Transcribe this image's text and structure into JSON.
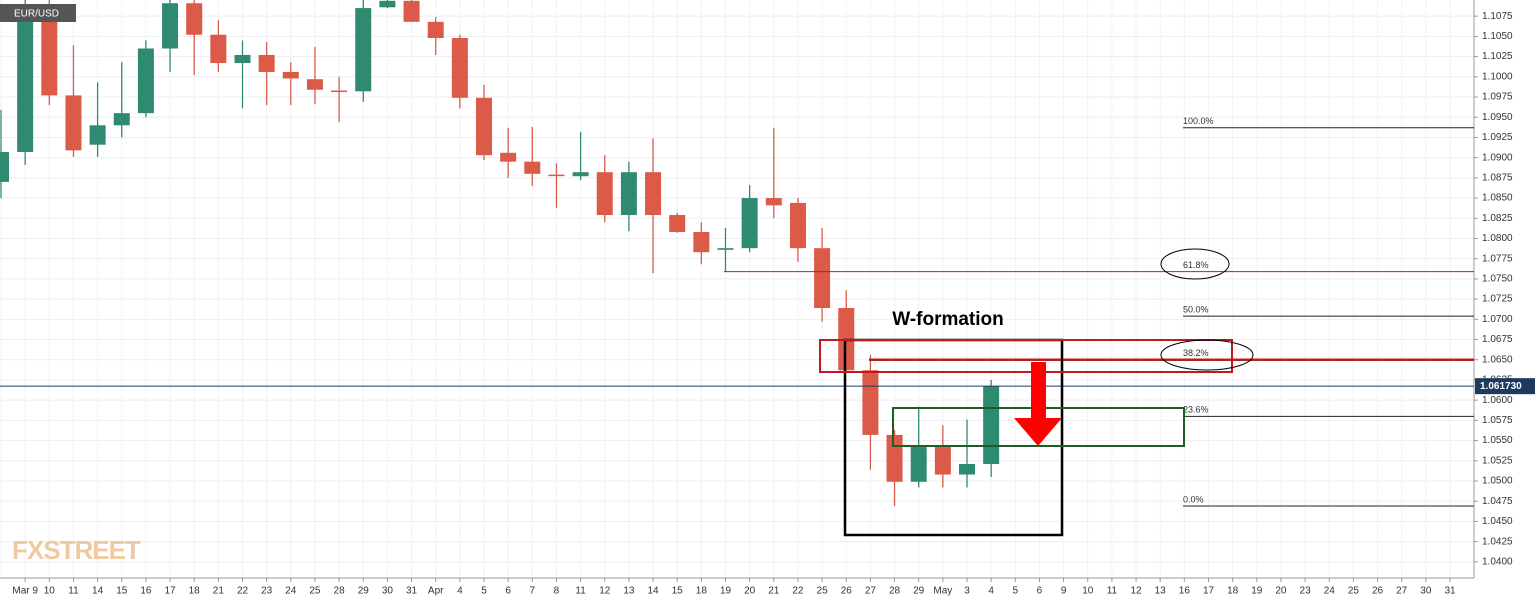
{
  "chart_data": {
    "type": "candlestick",
    "symbol": "EUR/USD",
    "categories": [
      null,
      "Mar 9",
      "10",
      "11",
      "14",
      "15",
      "16",
      "17",
      "18",
      "21",
      "22",
      "23",
      "24",
      "25",
      "28",
      "29",
      "30",
      "31",
      "Apr",
      "4",
      "5",
      "6",
      "7",
      "8",
      "11",
      "12",
      "13",
      "14",
      "15",
      "18",
      "19",
      "20",
      "21",
      "22",
      "25",
      "26",
      "27",
      "28",
      "29",
      "May",
      "3",
      "4",
      "5",
      "6",
      "9",
      "10",
      "11",
      "12",
      "13",
      "16",
      "17",
      "18",
      "19",
      "20",
      "23",
      "24",
      "25",
      "26",
      "27",
      "30",
      "31"
    ],
    "open": [
      1.087,
      1.0907,
      1.1082,
      1.0977,
      1.0916,
      1.094,
      1.0955,
      1.1035,
      1.1091,
      1.1052,
      1.1017,
      1.1027,
      1.1006,
      1.0997,
      1.0983,
      1.0982,
      1.1086,
      1.1094,
      1.1068,
      1.1048,
      1.0974,
      1.0906,
      1.0895,
      1.0879,
      1.0877,
      1.0882,
      1.0829,
      1.0882,
      1.0829,
      1.0808,
      1.0786,
      1.0788,
      1.085,
      1.0844,
      1.0788,
      1.0714,
      1.0637,
      1.0557,
      1.0499,
      1.0542,
      1.0508,
      1.0521,
      null,
      null,
      null,
      null,
      null,
      null,
      null,
      null,
      null,
      null,
      null,
      null,
      null,
      null,
      null,
      null,
      null,
      null,
      null
    ],
    "high": [
      1.0959,
      1.1095,
      1.1095,
      1.1039,
      1.0993,
      1.1018,
      1.1045,
      1.1095,
      1.1095,
      1.107,
      1.1045,
      1.1043,
      1.1018,
      1.1037,
      1.1,
      1.1095,
      1.1095,
      1.1095,
      1.1074,
      1.1052,
      1.099,
      1.0937,
      1.0938,
      1.0893,
      1.0932,
      1.0903,
      1.0895,
      1.0924,
      1.0832,
      1.082,
      1.0813,
      1.0866,
      1.0937,
      1.085,
      1.0813,
      1.0736,
      1.0656,
      1.0563,
      1.0592,
      1.0569,
      1.0576,
      1.0625,
      null,
      null,
      null,
      null,
      null,
      null,
      null,
      null,
      null,
      null,
      null,
      null,
      null,
      null,
      null,
      null,
      null,
      null,
      null
    ],
    "low": [
      1.085,
      1.0891,
      1.0965,
      1.0901,
      1.0901,
      1.0925,
      1.095,
      1.1006,
      1.1002,
      1.1006,
      1.0961,
      1.0965,
      1.0965,
      1.0966,
      1.0944,
      1.0969,
      1.1085,
      1.1068,
      1.1027,
      1.0961,
      1.0897,
      1.0875,
      1.0865,
      1.0838,
      1.0872,
      1.082,
      1.0809,
      1.0757,
      1.0807,
      1.0768,
      1.0759,
      1.0783,
      1.0825,
      1.0771,
      1.0697,
      1.0635,
      1.0514,
      1.0469,
      1.0492,
      1.0492,
      1.0492,
      1.0505,
      null,
      null,
      null,
      null,
      null,
      null,
      null,
      null,
      null,
      null,
      null,
      null,
      null,
      null,
      null,
      null,
      null,
      null,
      null
    ],
    "close": [
      1.0907,
      1.1082,
      1.0977,
      1.0909,
      1.094,
      1.0955,
      1.1035,
      1.1091,
      1.1052,
      1.1017,
      1.1027,
      1.1006,
      1.0998,
      1.0984,
      1.0982,
      1.1085,
      1.1094,
      1.1068,
      1.1048,
      1.0974,
      1.0903,
      1.0895,
      1.088,
      1.0878,
      1.0882,
      1.0829,
      1.0882,
      1.0829,
      1.0808,
      1.0783,
      1.0788,
      1.085,
      1.0841,
      1.0788,
      1.0714,
      1.0637,
      1.0557,
      1.0499,
      1.0542,
      1.0508,
      1.0521,
      1.0617,
      null,
      null,
      null,
      null,
      null,
      null,
      null,
      null,
      null,
      null,
      null,
      null,
      null,
      null,
      null,
      null,
      null,
      null,
      null
    ],
    "up_color": "#2f8a72",
    "down_color": "#dc5a48",
    "ylim": [
      1.038,
      1.1095
    ],
    "yticks": [
      {
        "value": 1.04,
        "label": "1.0400"
      },
      {
        "value": 1.0425,
        "label": "1.0425"
      },
      {
        "value": 1.045,
        "label": "1.0450"
      },
      {
        "value": 1.0475,
        "label": "1.0475"
      },
      {
        "value": 1.05,
        "label": "1.0500"
      },
      {
        "value": 1.0525,
        "label": "1.0525"
      },
      {
        "value": 1.055,
        "label": "1.0550"
      },
      {
        "value": 1.0575,
        "label": "1.0575"
      },
      {
        "value": 1.06,
        "label": "1.0600"
      },
      {
        "value": 1.0625,
        "label": "1.0625"
      },
      {
        "value": 1.065,
        "label": "1.0650"
      },
      {
        "value": 1.0675,
        "label": "1.0675"
      },
      {
        "value": 1.07,
        "label": "1.0700"
      },
      {
        "value": 1.0725,
        "label": "1.0725"
      },
      {
        "value": 1.075,
        "label": "1.0750"
      },
      {
        "value": 1.0775,
        "label": "1.0775"
      },
      {
        "value": 1.08,
        "label": "1.0800"
      },
      {
        "value": 1.0825,
        "label": "1.0825"
      },
      {
        "value": 1.085,
        "label": "1.0850"
      },
      {
        "value": 1.0875,
        "label": "1.0875"
      },
      {
        "value": 1.09,
        "label": "1.0900"
      },
      {
        "value": 1.0925,
        "label": "1.0925"
      },
      {
        "value": 1.095,
        "label": "1.0950"
      },
      {
        "value": 1.0975,
        "label": "1.0975"
      },
      {
        "value": 1.1,
        "label": "1.1000"
      },
      {
        "value": 1.1025,
        "label": "1.1025"
      },
      {
        "value": 1.105,
        "label": "1.1050"
      },
      {
        "value": 1.1075,
        "label": "1.1075"
      }
    ],
    "grid": true,
    "current_price": {
      "value": 1.06173,
      "label": "1.061730"
    },
    "fib_levels": [
      {
        "label": "100.0%",
        "price": 1.0937
      },
      {
        "label": "61.8%",
        "price": 1.0759
      },
      {
        "label": "50.0%",
        "price": 1.0704
      },
      {
        "label": "38.2%",
        "price": 1.065
      },
      {
        "label": "23.6%",
        "price": 1.058
      },
      {
        "label": "0.0%",
        "price": 1.0469
      }
    ],
    "annotation": "W-formation",
    "watermark": "FXSTREET"
  }
}
